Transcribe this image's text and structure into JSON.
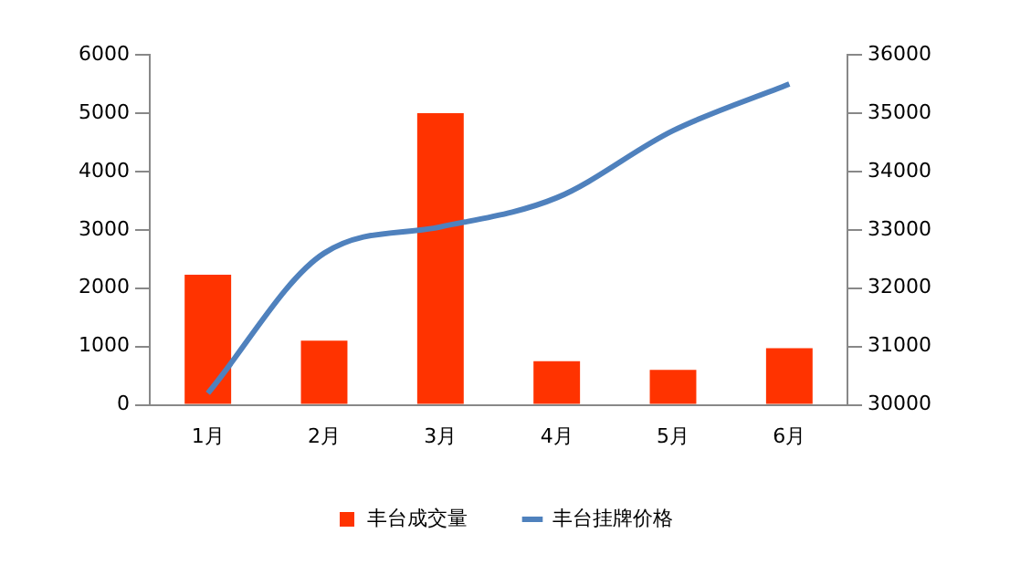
{
  "chart_data": {
    "type": "bar",
    "categories": [
      "1月",
      "2月",
      "3月",
      "4月",
      "5月",
      "6月"
    ],
    "series": [
      {
        "name": "丰台成交量",
        "color": "#ff3300",
        "values": [
          2230,
          1100,
          5000,
          750,
          600,
          970
        ]
      },
      {
        "name": "丰台挂牌价格",
        "type": "line",
        "axis": "y2",
        "color": "#4f81bd",
        "values": [
          30200,
          32600,
          33050,
          33550,
          34700,
          35500
        ]
      }
    ],
    "ylim": [
      0,
      6000
    ],
    "yticks": [
      0,
      1000,
      2000,
      3000,
      4000,
      5000,
      6000
    ],
    "y2lim": [
      30000,
      36000
    ],
    "y2ticks": [
      30000,
      31000,
      32000,
      33000,
      34000,
      35000,
      36000
    ],
    "grid": false,
    "legend": "bottom",
    "marker": "none"
  }
}
